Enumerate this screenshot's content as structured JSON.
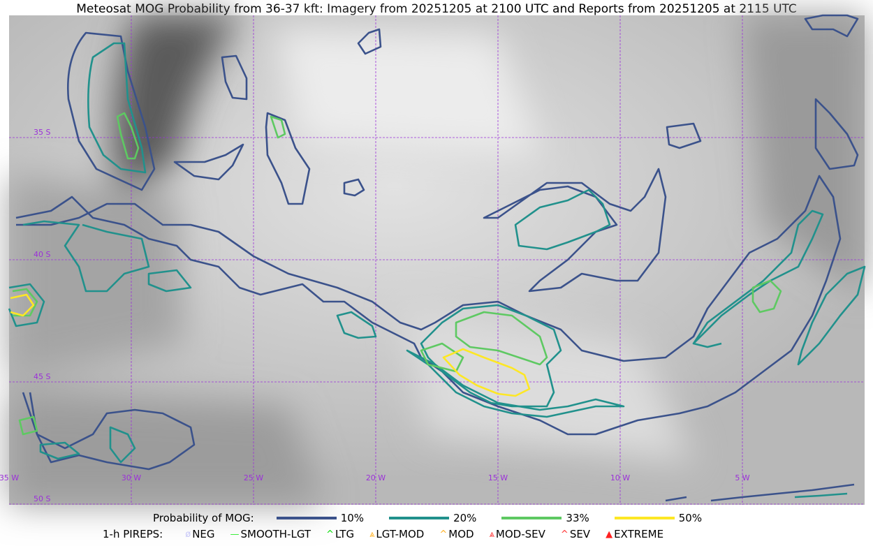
{
  "title": "Meteosat MOG Probability from 36-37 kft: Imagery from 20251205 at 2100 UTC and Reports from 20251205 at 2115 UTC",
  "map": {
    "lon_labels": [
      "35 W",
      "30 W",
      "25 W",
      "20 W",
      "15 W",
      "10 W",
      "5 W"
    ],
    "lat_labels": [
      "35 S",
      "40 S",
      "45 S",
      "50 S"
    ],
    "gridline_color": "#9b30d9",
    "contour_colors": {
      "10%": "#3b528b",
      "20%": "#21918c",
      "33%": "#5ec962",
      "50%": "#fde725"
    }
  },
  "legend": {
    "prob_label": "Probability of MOG:",
    "prob_items": [
      {
        "label": "10%",
        "color": "#3b528b"
      },
      {
        "label": "20%",
        "color": "#21918c"
      },
      {
        "label": "33%",
        "color": "#5ec962"
      },
      {
        "label": "50%",
        "color": "#fde725"
      }
    ],
    "pirep_label": "1-h PIREPS:",
    "pirep_items": [
      {
        "label": "NEG",
        "color": "#c8c8f8",
        "icon": "neg-icon"
      },
      {
        "label": "SMOOTH-LGT",
        "color": "#33ee33",
        "icon": "line-icon"
      },
      {
        "label": "LTG",
        "color": "#00dd00",
        "icon": "caret-icon"
      },
      {
        "label": "LGT-MOD",
        "color": "#ffb020",
        "icon": "caret-bar-icon"
      },
      {
        "label": "MOD",
        "color": "#ffb020",
        "icon": "caret-icon"
      },
      {
        "label": "MOD-SEV",
        "color": "#ff3030",
        "icon": "double-caret-bar-icon"
      },
      {
        "label": "SEV",
        "color": "#ff3030",
        "icon": "double-caret-icon"
      },
      {
        "label": "EXTREME",
        "color": "#ff2020",
        "icon": "filled-triangle-icon"
      }
    ]
  }
}
